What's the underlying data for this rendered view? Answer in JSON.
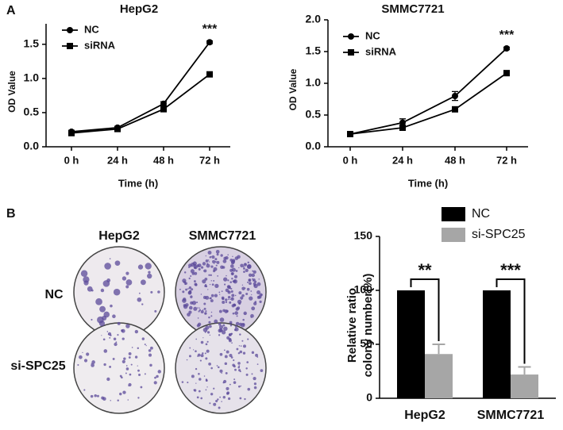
{
  "figure": {
    "panel_a": "A",
    "panel_b": "B",
    "plates": {
      "columns": [
        "HepG2",
        "SMMC7721"
      ],
      "rows": [
        "NC",
        "si-SPC25"
      ]
    }
  },
  "chart_data": [
    {
      "type": "line",
      "title": "HepG2",
      "xlabel": "Time (h)",
      "ylabel": "OD Value",
      "categories": [
        "0 h",
        "24 h",
        "48 h",
        "72 h"
      ],
      "series": [
        {
          "name": "NC",
          "color": "#000000",
          "marker": "circle",
          "values": [
            0.22,
            0.28,
            0.63,
            1.53
          ],
          "errors": [
            0.02,
            0.02,
            0.03,
            0.02
          ]
        },
        {
          "name": "siRNA",
          "color": "#000000",
          "marker": "square",
          "values": [
            0.2,
            0.26,
            0.55,
            1.06
          ],
          "errors": [
            0.02,
            0.02,
            0.02,
            0.02
          ]
        }
      ],
      "ylim": [
        0,
        1.8
      ],
      "yticks": [
        {
          "value": 0,
          "label": "0.0"
        },
        0.5,
        {
          "value": 1,
          "label": "1.0"
        },
        1.5
      ],
      "annotation": "***"
    },
    {
      "type": "line",
      "title": "SMMC7721",
      "xlabel": "Time (h)",
      "ylabel": "OD Value",
      "categories": [
        "0 h",
        "24 h",
        "48 h",
        "72 h"
      ],
      "series": [
        {
          "name": "NC",
          "color": "#000000",
          "marker": "circle",
          "values": [
            0.2,
            0.38,
            0.8,
            1.55
          ],
          "errors": [
            0.02,
            0.06,
            0.07,
            0.02
          ]
        },
        {
          "name": "siRNA",
          "color": "#000000",
          "marker": "square",
          "values": [
            0.2,
            0.3,
            0.59,
            1.16
          ],
          "errors": [
            0.02,
            0.03,
            0.02,
            0.04
          ]
        }
      ],
      "ylim": [
        0,
        2
      ],
      "yticks": [
        {
          "value": 0,
          "label": "0.0"
        },
        0.5,
        {
          "value": 1,
          "label": "1.0"
        },
        1.5,
        {
          "value": 2,
          "label": "2.0"
        }
      ],
      "annotation": "***"
    },
    {
      "type": "bar",
      "ylabel": [
        "Relative ratio",
        "colony number(%)"
      ],
      "categories": [
        "HepG2",
        "SMMC7721"
      ],
      "series": [
        {
          "name": "NC",
          "color": "#000000",
          "values": [
            100,
            100
          ]
        },
        {
          "name": "si-SPC25",
          "color": "#a6a6a6",
          "values": [
            41,
            22
          ],
          "errors": [
            9,
            7
          ]
        }
      ],
      "ylim": [
        0,
        150
      ],
      "yticks": [
        0,
        50,
        100,
        150
      ],
      "annotations": [
        "**",
        "***"
      ]
    }
  ]
}
